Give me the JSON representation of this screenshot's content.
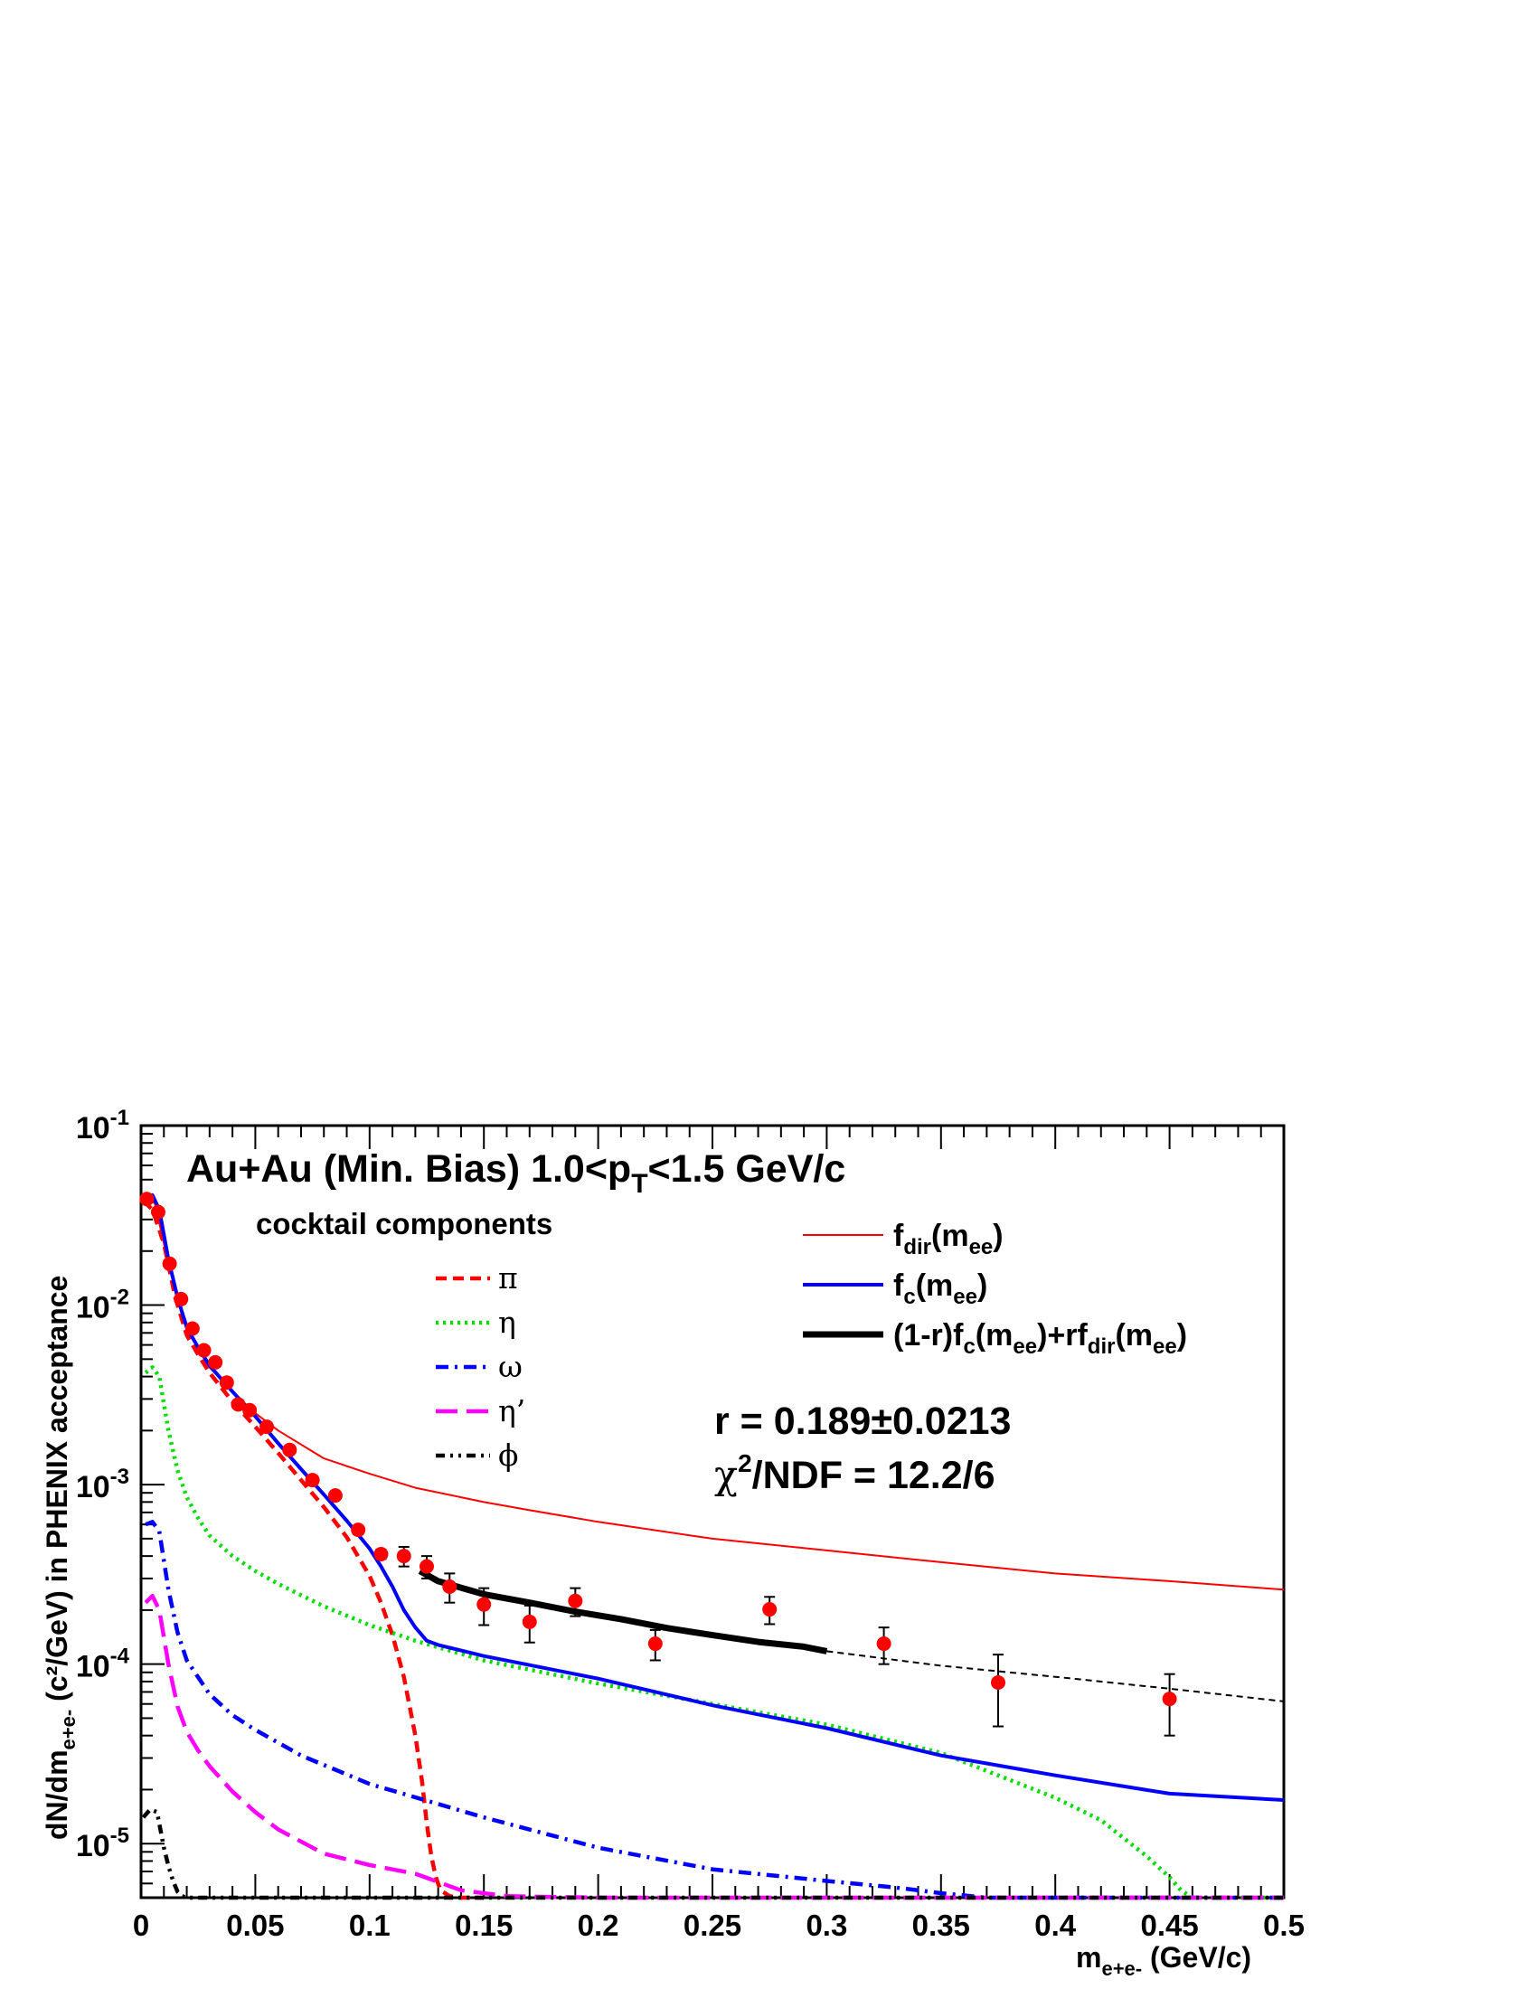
{
  "chart_data": {
    "type": "line",
    "title": {
      "main": "Au+Au (Min. Bias) 1.0<p",
      "sub": "T",
      "rest": "<1.5 GeV/c"
    },
    "xlabel": {
      "main": "m",
      "sub": "e+e-",
      "rest": " (GeV/c)"
    },
    "ylabel": {
      "pre": "dN/dm",
      "sub": "e+e-",
      "post": " (c²/GeV) in PHENIX acceptance"
    },
    "xlim": [
      0,
      0.5
    ],
    "ylim": [
      5e-06,
      0.1
    ],
    "log_y": true,
    "grid": false,
    "x_ticks": [
      "0",
      "0.05",
      "0.1",
      "0.15",
      "0.2",
      "0.25",
      "0.3",
      "0.35",
      "0.4",
      "0.45",
      "0.5"
    ],
    "y_ticks": [
      {
        "base": "10",
        "exp": "-1",
        "value": 0.1
      },
      {
        "base": "10",
        "exp": "-2",
        "value": 0.01
      },
      {
        "base": "10",
        "exp": "-3",
        "value": 0.001
      },
      {
        "base": "10",
        "exp": "-4",
        "value": 0.0001
      },
      {
        "base": "10",
        "exp": "-5",
        "value": 1e-05
      }
    ],
    "cocktail_header": "cocktail components",
    "cocktail_series": [
      {
        "label": "π",
        "color": "#ff0000",
        "style": "dashed",
        "x": [
          0.001,
          0.005,
          0.01,
          0.015,
          0.02,
          0.025,
          0.03,
          0.04,
          0.05,
          0.06,
          0.07,
          0.08,
          0.09,
          0.1,
          0.105,
          0.11,
          0.115,
          0.12,
          0.123,
          0.125,
          0.127,
          0.129,
          0.131,
          0.135,
          0.14,
          0.15
        ],
        "y": [
          0.038,
          0.034,
          0.022,
          0.011,
          0.0068,
          0.0053,
          0.0042,
          0.0029,
          0.0021,
          0.0015,
          0.00106,
          0.00075,
          0.00051,
          0.00031,
          0.00022,
          0.000145,
          8.5e-05,
          4e-05,
          2.2e-05,
          1.3e-05,
          8.5e-06,
          6.5e-06,
          5.5e-06,
          5.1e-06,
          5e-06,
          5e-06
        ]
      },
      {
        "label": "η",
        "color": "#00dd00",
        "style": "dotted",
        "x": [
          0.002,
          0.005,
          0.008,
          0.012,
          0.016,
          0.02,
          0.025,
          0.03,
          0.04,
          0.05,
          0.06,
          0.08,
          0.1,
          0.12,
          0.15,
          0.2,
          0.25,
          0.3,
          0.35,
          0.4,
          0.42,
          0.44,
          0.45,
          0.455,
          0.46,
          0.5
        ],
        "y": [
          0.0042,
          0.0045,
          0.004,
          0.002,
          0.0012,
          0.00085,
          0.00065,
          0.00052,
          0.0004,
          0.00033,
          0.00028,
          0.00021,
          0.000165,
          0.000135,
          0.000105,
          7.8e-05,
          6e-05,
          4.6e-05,
          3.2e-05,
          1.8e-05,
          1.35e-05,
          8.5e-06,
          6.5e-06,
          5.5e-06,
          5e-06,
          5e-06
        ]
      },
      {
        "label": "ω",
        "color": "#0000ff",
        "style": "dashdot",
        "x": [
          0.002,
          0.005,
          0.008,
          0.012,
          0.016,
          0.02,
          0.03,
          0.04,
          0.05,
          0.07,
          0.1,
          0.15,
          0.2,
          0.25,
          0.3,
          0.33,
          0.35,
          0.37,
          0.38,
          0.5
        ],
        "y": [
          0.0006,
          0.00062,
          0.00055,
          0.00026,
          0.00015,
          0.000105,
          6.8e-05,
          5.2e-05,
          4.3e-05,
          3.1e-05,
          2.15e-05,
          1.4e-05,
          9.5e-06,
          7.2e-06,
          6.2e-06,
          5.7e-06,
          5.3e-06,
          5e-06,
          5e-06,
          5e-06
        ]
      },
      {
        "label": "η’",
        "color": "#ff00ff",
        "style": "longdash",
        "x": [
          0.002,
          0.005,
          0.008,
          0.012,
          0.016,
          0.02,
          0.025,
          0.03,
          0.04,
          0.05,
          0.06,
          0.08,
          0.1,
          0.12,
          0.14,
          0.16,
          0.2,
          0.5
        ],
        "y": [
          0.00022,
          0.00024,
          0.0002,
          0.0001,
          5.8e-05,
          4.2e-05,
          3.3e-05,
          2.7e-05,
          1.95e-05,
          1.5e-05,
          1.2e-05,
          8.8e-06,
          7.6e-06,
          6.8e-06,
          5.5e-06,
          5.1e-06,
          5e-06,
          5e-06
        ]
      },
      {
        "label": "ϕ",
        "color": "#000000",
        "style": "dashdotdot",
        "x": [
          0.001,
          0.004,
          0.007,
          0.01,
          0.012,
          0.014,
          0.016,
          0.018,
          0.02,
          0.5
        ],
        "y": [
          1.4e-05,
          1.55e-05,
          1.5e-05,
          9.5e-06,
          7.5e-06,
          6.2e-06,
          5.4e-06,
          5.1e-06,
          5e-06,
          5e-06
        ]
      }
    ],
    "fit_series": [
      {
        "label": {
          "main": "f",
          "sub": "dir",
          "rest": "(m",
          "sub2": "ee",
          "tail": ")"
        },
        "color": "#ff0000",
        "style": "thin",
        "x": [
          0.003,
          0.006,
          0.01,
          0.015,
          0.02,
          0.025,
          0.03,
          0.04,
          0.05,
          0.06,
          0.08,
          0.1,
          0.12,
          0.14,
          0.15,
          0.17,
          0.2,
          0.25,
          0.3,
          0.35,
          0.4,
          0.45,
          0.5
        ],
        "y": [
          0.038,
          0.037,
          0.022,
          0.012,
          0.0078,
          0.0058,
          0.0045,
          0.0033,
          0.0025,
          0.002,
          0.0014,
          0.00115,
          0.00096,
          0.00085,
          0.0008,
          0.00072,
          0.00062,
          0.0005,
          0.00043,
          0.00037,
          0.00032,
          0.00029,
          0.00026
        ]
      },
      {
        "label": {
          "main": "f",
          "sub": "c",
          "rest": "(m",
          "sub2": "ee",
          "tail": ")"
        },
        "color": "#0000ff",
        "style": "medium",
        "x": [
          0.002,
          0.005,
          0.008,
          0.012,
          0.016,
          0.02,
          0.025,
          0.03,
          0.04,
          0.05,
          0.06,
          0.07,
          0.08,
          0.09,
          0.1,
          0.105,
          0.11,
          0.115,
          0.12,
          0.125,
          0.13,
          0.15,
          0.2,
          0.25,
          0.3,
          0.35,
          0.4,
          0.45,
          0.5
        ],
        "y": [
          0.038,
          0.041,
          0.034,
          0.018,
          0.011,
          0.0075,
          0.0058,
          0.0046,
          0.0033,
          0.0024,
          0.0017,
          0.00122,
          0.00088,
          0.00063,
          0.00044,
          0.00035,
          0.00027,
          0.0002,
          0.00016,
          0.000135,
          0.000128,
          0.000111,
          8.3e-05,
          5.9e-05,
          4.4e-05,
          3.1e-05,
          2.4e-05,
          1.9e-05,
          1.75e-05
        ]
      },
      {
        "label": {
          "main": "(1-r)f",
          "sub": "c",
          "rest": "(m",
          "sub2": "ee",
          "tail": ")+rf",
          "sub3": "dir",
          "tail2": "(m",
          "sub4": "ee",
          "tail3": ")"
        },
        "color": "#000000",
        "style": "thick",
        "x": [
          0.122,
          0.13,
          0.15,
          0.17,
          0.19,
          0.21,
          0.23,
          0.25,
          0.27,
          0.29,
          0.3
        ],
        "y": [
          0.00033,
          0.00029,
          0.000245,
          0.00022,
          0.000196,
          0.000178,
          0.000159,
          0.000145,
          0.000133,
          0.000125,
          0.000118
        ]
      },
      {
        "label": "",
        "color": "#000000",
        "style": "thindash",
        "x": [
          0.3,
          0.35,
          0.4,
          0.45,
          0.5
        ],
        "y": [
          0.000118,
          9.8e-05,
          8.5e-05,
          7.3e-05,
          6.2e-05
        ]
      }
    ],
    "data_points": [
      {
        "x": 0.0025,
        "y": 0.039,
        "err": 0.0015
      },
      {
        "x": 0.0075,
        "y": 0.033,
        "err": 0.0012
      },
      {
        "x": 0.0125,
        "y": 0.017,
        "err": 0.0007
      },
      {
        "x": 0.0175,
        "y": 0.0108,
        "err": 0.0004
      },
      {
        "x": 0.0225,
        "y": 0.0074,
        "err": 0.0003
      },
      {
        "x": 0.0275,
        "y": 0.0056,
        "err": 0.0002
      },
      {
        "x": 0.0325,
        "y": 0.0048,
        "err": 0.0002
      },
      {
        "x": 0.0375,
        "y": 0.0037,
        "err": 0.00015
      },
      {
        "x": 0.0425,
        "y": 0.0028,
        "err": 0.00012
      },
      {
        "x": 0.0475,
        "y": 0.0026,
        "err": 0.0001
      },
      {
        "x": 0.055,
        "y": 0.0021,
        "err": 8e-05
      },
      {
        "x": 0.065,
        "y": 0.00156,
        "err": 6e-05
      },
      {
        "x": 0.075,
        "y": 0.00106,
        "err": 5e-05
      },
      {
        "x": 0.085,
        "y": 0.00087,
        "err": 4e-05
      },
      {
        "x": 0.095,
        "y": 0.00056,
        "err": 3e-05
      },
      {
        "x": 0.105,
        "y": 0.00041,
        "err": 2.5e-05
      },
      {
        "x": 0.115,
        "y": 0.0004,
        "err": 5e-05
      },
      {
        "x": 0.125,
        "y": 0.00035,
        "err": 5e-05
      },
      {
        "x": 0.135,
        "y": 0.00027,
        "err": 5e-05
      },
      {
        "x": 0.15,
        "y": 0.000215,
        "err": 5e-05
      },
      {
        "x": 0.17,
        "y": 0.000172,
        "err": 4e-05
      },
      {
        "x": 0.19,
        "y": 0.000225,
        "err": 4e-05
      },
      {
        "x": 0.225,
        "y": 0.00013,
        "err": 2.5e-05
      },
      {
        "x": 0.275,
        "y": 0.000202,
        "err": 3.5e-05
      },
      {
        "x": 0.325,
        "y": 0.00013,
        "err": 3e-05
      },
      {
        "x": 0.375,
        "y": 7.9e-05,
        "err": 3.4e-05
      },
      {
        "x": 0.45,
        "y": 6.4e-05,
        "err": 2.4e-05
      }
    ],
    "annotations": {
      "r_line": "r = 0.189±0.0213",
      "chi_pre": "χ",
      "chi_exp": "2",
      "chi_post": "/NDF = 12.2/6"
    }
  }
}
